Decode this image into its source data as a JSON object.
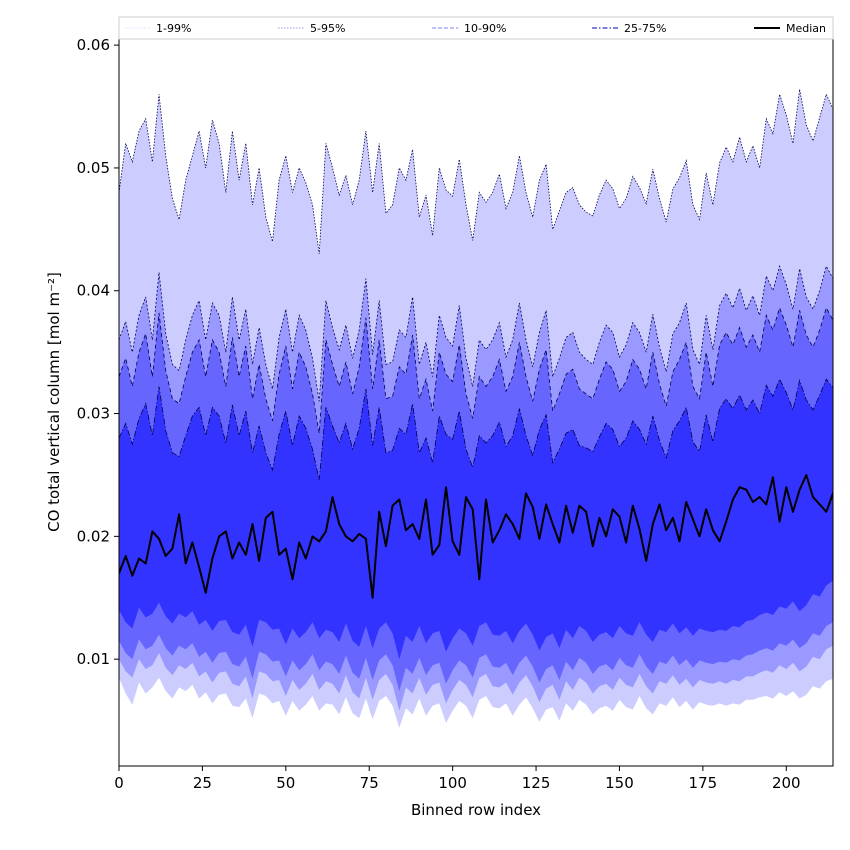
{
  "chart_data": {
    "type": "area",
    "title": "",
    "xlabel": "Binned row index",
    "ylabel": "CO total vertical column [mol m⁻²]",
    "xlim": [
      0,
      214
    ],
    "ylim": [
      0.0013,
      0.0605
    ],
    "x_ticks": [
      0,
      25,
      50,
      75,
      100,
      125,
      150,
      175,
      200
    ],
    "x_tick_labels": [
      "0",
      "25",
      "50",
      "75",
      "100",
      "125",
      "150",
      "175",
      "200"
    ],
    "y_ticks": [
      0.01,
      0.02,
      0.03,
      0.04,
      0.05,
      0.06
    ],
    "y_tick_labels": [
      "0.01",
      "0.02",
      "0.03",
      "0.04",
      "0.05",
      "0.06"
    ],
    "grid": false,
    "legend_position": "top",
    "legend": [
      {
        "label": "1-99%",
        "color": "#ccccff",
        "style": "dotted"
      },
      {
        "label": "5-95%",
        "color": "#7b7bd9",
        "style": "dotted"
      },
      {
        "label": "10-90%",
        "color": "#8080ff",
        "style": "dashed"
      },
      {
        "label": "25-75%",
        "color": "#3333cc",
        "style": "dashdot"
      },
      {
        "label": "Median",
        "color": "#000000",
        "style": "solid"
      }
    ],
    "x_step": 2,
    "bands": [
      {
        "name": "1-99%",
        "color": "#ccccff",
        "edge": "#00004d",
        "dash": "1.5 1.5",
        "lower": [
          0.0085,
          0.0072,
          0.0063,
          0.0081,
          0.0072,
          0.0077,
          0.0085,
          0.0074,
          0.0068,
          0.0077,
          0.0074,
          0.0079,
          0.0068,
          0.0073,
          0.0064,
          0.0071,
          0.0072,
          0.0062,
          0.0061,
          0.0068,
          0.0052,
          0.0072,
          0.007,
          0.0064,
          0.0066,
          0.0054,
          0.0066,
          0.0058,
          0.0063,
          0.007,
          0.0058,
          0.0064,
          0.0063,
          0.0055,
          0.0069,
          0.0056,
          0.0052,
          0.0068,
          0.0051,
          0.0066,
          0.007,
          0.0062,
          0.0044,
          0.006,
          0.0055,
          0.0068,
          0.0054,
          0.0062,
          0.0064,
          0.0048,
          0.0058,
          0.0066,
          0.0062,
          0.0052,
          0.0067,
          0.007,
          0.0061,
          0.006,
          0.0064,
          0.0054,
          0.0063,
          0.0069,
          0.006,
          0.0049,
          0.0059,
          0.0061,
          0.005,
          0.0064,
          0.0058,
          0.0067,
          0.0063,
          0.0055,
          0.006,
          0.0062,
          0.0058,
          0.0067,
          0.0061,
          0.0059,
          0.007,
          0.006,
          0.0055,
          0.0064,
          0.0062,
          0.0069,
          0.0061,
          0.0066,
          0.0059,
          0.0065,
          0.0063,
          0.0062,
          0.0064,
          0.0062,
          0.0064,
          0.0063,
          0.0067,
          0.0067,
          0.0069,
          0.007,
          0.0068,
          0.0073,
          0.007,
          0.0074,
          0.0068,
          0.0071,
          0.0078,
          0.0076,
          0.0082,
          0.0084,
          0.0075
        ],
        "upper": [
          0.048,
          0.052,
          0.0505,
          0.053,
          0.054,
          0.0505,
          0.056,
          0.051,
          0.0475,
          0.0458,
          0.049,
          0.051,
          0.053,
          0.05,
          0.0539,
          0.052,
          0.048,
          0.053,
          0.049,
          0.052,
          0.047,
          0.05,
          0.046,
          0.044,
          0.049,
          0.051,
          0.048,
          0.05,
          0.0488,
          0.047,
          0.043,
          0.052,
          0.05,
          0.0478,
          0.0494,
          0.047,
          0.049,
          0.053,
          0.048,
          0.052,
          0.0463,
          0.047,
          0.05,
          0.049,
          0.0515,
          0.046,
          0.0478,
          0.0445,
          0.05,
          0.0482,
          0.0477,
          0.0507,
          0.047,
          0.0441,
          0.048,
          0.0472,
          0.048,
          0.0495,
          0.0467,
          0.048,
          0.051,
          0.048,
          0.046,
          0.049,
          0.0503,
          0.045,
          0.0465,
          0.048,
          0.0484,
          0.047,
          0.0464,
          0.0461,
          0.0478,
          0.049,
          0.0483,
          0.0467,
          0.0475,
          0.0493,
          0.0484,
          0.0471,
          0.0499,
          0.0475,
          0.0456,
          0.0483,
          0.0492,
          0.0506,
          0.047,
          0.0458,
          0.0496,
          0.047,
          0.0504,
          0.0517,
          0.0505,
          0.0525,
          0.0505,
          0.0518,
          0.05,
          0.054,
          0.0528,
          0.056,
          0.0543,
          0.052,
          0.0564,
          0.0535,
          0.0522,
          0.0541,
          0.056,
          0.0548,
          0.0548
        ]
      },
      {
        "name": "5-95%",
        "color": "#9999ff",
        "edge": "#00004d",
        "dash": "2 2",
        "lower": [
          0.01,
          0.009,
          0.0085,
          0.01,
          0.0092,
          0.0095,
          0.0105,
          0.0093,
          0.0087,
          0.0095,
          0.0092,
          0.0097,
          0.0086,
          0.009,
          0.0081,
          0.0089,
          0.009,
          0.008,
          0.0078,
          0.0086,
          0.0068,
          0.009,
          0.0088,
          0.0082,
          0.0083,
          0.007,
          0.0083,
          0.0075,
          0.008,
          0.0088,
          0.0075,
          0.0082,
          0.008,
          0.0072,
          0.0087,
          0.0073,
          0.0068,
          0.0085,
          0.0067,
          0.0083,
          0.0088,
          0.0079,
          0.0058,
          0.0077,
          0.0072,
          0.0085,
          0.0071,
          0.0079,
          0.0081,
          0.0064,
          0.0075,
          0.0083,
          0.0079,
          0.0069,
          0.0085,
          0.0088,
          0.0078,
          0.0077,
          0.0081,
          0.0071,
          0.0081,
          0.0087,
          0.0078,
          0.0065,
          0.0076,
          0.0079,
          0.0067,
          0.0082,
          0.0075,
          0.0085,
          0.0081,
          0.0072,
          0.0078,
          0.008,
          0.0075,
          0.0085,
          0.0079,
          0.0077,
          0.0088,
          0.0078,
          0.0072,
          0.0082,
          0.008,
          0.0087,
          0.0079,
          0.0084,
          0.0077,
          0.0083,
          0.0081,
          0.008,
          0.0082,
          0.008,
          0.0083,
          0.0082,
          0.0086,
          0.0086,
          0.0089,
          0.0091,
          0.0089,
          0.0095,
          0.0092,
          0.0097,
          0.009,
          0.0094,
          0.0102,
          0.01,
          0.0108,
          0.0111,
          0.01
        ],
        "upper": [
          0.036,
          0.0375,
          0.035,
          0.038,
          0.0395,
          0.036,
          0.0415,
          0.0365,
          0.034,
          0.0335,
          0.036,
          0.038,
          0.0392,
          0.036,
          0.039,
          0.038,
          0.035,
          0.0395,
          0.036,
          0.0385,
          0.034,
          0.037,
          0.034,
          0.032,
          0.0362,
          0.0385,
          0.035,
          0.038,
          0.0368,
          0.0345,
          0.031,
          0.0392,
          0.037,
          0.0352,
          0.0372,
          0.0345,
          0.0368,
          0.041,
          0.0348,
          0.0392,
          0.034,
          0.0342,
          0.0368,
          0.0362,
          0.0395,
          0.034,
          0.0358,
          0.033,
          0.038,
          0.0362,
          0.0355,
          0.0388,
          0.0345,
          0.0322,
          0.036,
          0.0352,
          0.036,
          0.0374,
          0.0346,
          0.036,
          0.039,
          0.036,
          0.0338,
          0.0366,
          0.0384,
          0.033,
          0.0345,
          0.0362,
          0.0366,
          0.035,
          0.0344,
          0.034,
          0.0358,
          0.0372,
          0.0366,
          0.0346,
          0.0356,
          0.0374,
          0.0366,
          0.035,
          0.0381,
          0.0354,
          0.0334,
          0.0365,
          0.0374,
          0.039,
          0.0352,
          0.034,
          0.038,
          0.0352,
          0.0388,
          0.0398,
          0.0386,
          0.0402,
          0.0384,
          0.0396,
          0.038,
          0.0412,
          0.04,
          0.042,
          0.0405,
          0.0385,
          0.0418,
          0.0395,
          0.0385,
          0.04,
          0.042,
          0.041,
          0.0408
        ]
      },
      {
        "name": "10-90%",
        "color": "#6666ff",
        "edge": "#00004d",
        "dash": "4 3",
        "lower": [
          0.0115,
          0.0105,
          0.01,
          0.0116,
          0.0108,
          0.0111,
          0.012,
          0.0109,
          0.0103,
          0.0111,
          0.0108,
          0.0113,
          0.0102,
          0.0106,
          0.0097,
          0.0105,
          0.0106,
          0.0096,
          0.0094,
          0.0102,
          0.0084,
          0.0106,
          0.0104,
          0.0098,
          0.0099,
          0.0086,
          0.0099,
          0.0091,
          0.0096,
          0.0104,
          0.0091,
          0.0098,
          0.0096,
          0.0088,
          0.0103,
          0.0089,
          0.0084,
          0.0101,
          0.0083,
          0.0099,
          0.0104,
          0.0095,
          0.0074,
          0.0093,
          0.0088,
          0.0101,
          0.0087,
          0.0095,
          0.0097,
          0.008,
          0.0091,
          0.0099,
          0.0095,
          0.0085,
          0.0101,
          0.0104,
          0.0094,
          0.0093,
          0.0097,
          0.0087,
          0.0097,
          0.0103,
          0.0094,
          0.0081,
          0.0092,
          0.0095,
          0.0083,
          0.0098,
          0.0091,
          0.0101,
          0.0097,
          0.0088,
          0.0094,
          0.0096,
          0.0091,
          0.0101,
          0.0095,
          0.0093,
          0.0104,
          0.0094,
          0.0088,
          0.0098,
          0.0096,
          0.0103,
          0.0095,
          0.01,
          0.0093,
          0.0099,
          0.0097,
          0.0096,
          0.0098,
          0.0097,
          0.01,
          0.0099,
          0.0103,
          0.0104,
          0.0107,
          0.0109,
          0.0107,
          0.0113,
          0.0111,
          0.0116,
          0.0109,
          0.0113,
          0.0121,
          0.0119,
          0.0127,
          0.013,
          0.012
        ],
        "upper": [
          0.033,
          0.0345,
          0.0322,
          0.035,
          0.0365,
          0.033,
          0.0382,
          0.0335,
          0.0312,
          0.0308,
          0.033,
          0.035,
          0.036,
          0.033,
          0.036,
          0.035,
          0.0322,
          0.0362,
          0.033,
          0.0355,
          0.0312,
          0.034,
          0.0312,
          0.0294,
          0.0332,
          0.0355,
          0.032,
          0.035,
          0.0338,
          0.0316,
          0.0284,
          0.036,
          0.034,
          0.0322,
          0.0342,
          0.0316,
          0.0338,
          0.0378,
          0.032,
          0.036,
          0.0312,
          0.0314,
          0.0338,
          0.0332,
          0.0364,
          0.0312,
          0.0328,
          0.0302,
          0.035,
          0.0332,
          0.0326,
          0.0356,
          0.0316,
          0.0296,
          0.033,
          0.0322,
          0.033,
          0.0344,
          0.0318,
          0.033,
          0.0358,
          0.033,
          0.031,
          0.0336,
          0.0352,
          0.0302,
          0.0316,
          0.0332,
          0.0336,
          0.032,
          0.0316,
          0.0312,
          0.0328,
          0.0342,
          0.0336,
          0.0318,
          0.0326,
          0.0344,
          0.0336,
          0.032,
          0.035,
          0.0324,
          0.0306,
          0.0334,
          0.0344,
          0.0358,
          0.0322,
          0.0312,
          0.035,
          0.0322,
          0.0356,
          0.0366,
          0.0356,
          0.037,
          0.0354,
          0.0364,
          0.035,
          0.038,
          0.0368,
          0.0386,
          0.0372,
          0.0354,
          0.0384,
          0.0364,
          0.0354,
          0.0368,
          0.0386,
          0.0376,
          0.0374
        ]
      },
      {
        "name": "25-75%",
        "color": "#3333ff",
        "edge": "#00004d",
        "dash": "6 2 1.5 2",
        "lower": [
          0.014,
          0.013,
          0.0125,
          0.0142,
          0.0134,
          0.0137,
          0.0146,
          0.0135,
          0.0129,
          0.0137,
          0.0134,
          0.0139,
          0.0128,
          0.0132,
          0.0123,
          0.0131,
          0.0132,
          0.0122,
          0.012,
          0.0128,
          0.011,
          0.0132,
          0.013,
          0.0124,
          0.0125,
          0.0112,
          0.0125,
          0.0117,
          0.0122,
          0.013,
          0.0117,
          0.0124,
          0.0122,
          0.0114,
          0.0129,
          0.0115,
          0.011,
          0.0127,
          0.0109,
          0.0125,
          0.013,
          0.0121,
          0.01,
          0.0119,
          0.0114,
          0.0127,
          0.0113,
          0.0121,
          0.0123,
          0.0106,
          0.0117,
          0.0125,
          0.0121,
          0.0111,
          0.0127,
          0.013,
          0.012,
          0.0119,
          0.0123,
          0.0113,
          0.0123,
          0.0129,
          0.012,
          0.0107,
          0.0118,
          0.0121,
          0.0109,
          0.0124,
          0.0117,
          0.0127,
          0.0123,
          0.0114,
          0.012,
          0.0122,
          0.0117,
          0.0127,
          0.0121,
          0.0119,
          0.013,
          0.012,
          0.0114,
          0.0124,
          0.0122,
          0.0129,
          0.0121,
          0.0126,
          0.0119,
          0.0125,
          0.0123,
          0.0122,
          0.0124,
          0.0123,
          0.0127,
          0.0126,
          0.0131,
          0.0132,
          0.0136,
          0.0138,
          0.0136,
          0.0143,
          0.0141,
          0.0147,
          0.0139,
          0.0144,
          0.0153,
          0.0151,
          0.016,
          0.0164,
          0.0152
        ],
        "upper": [
          0.028,
          0.0292,
          0.0275,
          0.0296,
          0.0308,
          0.0282,
          0.0322,
          0.0286,
          0.0268,
          0.0265,
          0.0282,
          0.0298,
          0.0305,
          0.0282,
          0.0305,
          0.0298,
          0.0276,
          0.0307,
          0.0282,
          0.0302,
          0.0268,
          0.029,
          0.0268,
          0.0254,
          0.0283,
          0.0302,
          0.0274,
          0.0298,
          0.0288,
          0.0271,
          0.0246,
          0.0305,
          0.029,
          0.0276,
          0.0292,
          0.0271,
          0.0288,
          0.032,
          0.0274,
          0.0305,
          0.0268,
          0.027,
          0.0288,
          0.0283,
          0.0308,
          0.0268,
          0.028,
          0.026,
          0.0298,
          0.0283,
          0.0279,
          0.0302,
          0.0271,
          0.0256,
          0.0282,
          0.0276,
          0.0282,
          0.0293,
          0.0273,
          0.0282,
          0.0304,
          0.0282,
          0.0266,
          0.0287,
          0.0299,
          0.026,
          0.0271,
          0.0284,
          0.0287,
          0.0274,
          0.0272,
          0.0269,
          0.0281,
          0.0292,
          0.0287,
          0.0273,
          0.028,
          0.0294,
          0.0287,
          0.0275,
          0.0298,
          0.0278,
          0.0264,
          0.0286,
          0.0294,
          0.0305,
          0.0277,
          0.0269,
          0.0299,
          0.0277,
          0.0304,
          0.0312,
          0.0304,
          0.0315,
          0.0303,
          0.0311,
          0.03,
          0.0323,
          0.0314,
          0.0328,
          0.0317,
          0.0303,
          0.0327,
          0.0311,
          0.0303,
          0.0315,
          0.0328,
          0.0321,
          0.032
        ]
      }
    ],
    "series": [
      {
        "name": "Median",
        "color": "#000000",
        "values": [
          0.017,
          0.0184,
          0.0168,
          0.0182,
          0.0178,
          0.0204,
          0.0198,
          0.0184,
          0.019,
          0.0218,
          0.0178,
          0.0195,
          0.0175,
          0.0154,
          0.0182,
          0.02,
          0.0204,
          0.0182,
          0.0195,
          0.0185,
          0.021,
          0.018,
          0.0215,
          0.022,
          0.0185,
          0.019,
          0.0165,
          0.0195,
          0.0182,
          0.02,
          0.0196,
          0.0204,
          0.0232,
          0.021,
          0.02,
          0.0196,
          0.0202,
          0.0198,
          0.015,
          0.022,
          0.0192,
          0.0225,
          0.023,
          0.0205,
          0.021,
          0.0198,
          0.023,
          0.0185,
          0.0193,
          0.024,
          0.0196,
          0.0185,
          0.0232,
          0.0222,
          0.0165,
          0.023,
          0.0195,
          0.0205,
          0.0218,
          0.021,
          0.0198,
          0.0235,
          0.0224,
          0.0198,
          0.0226,
          0.021,
          0.0195,
          0.0225,
          0.0203,
          0.0225,
          0.022,
          0.0192,
          0.0215,
          0.02,
          0.0222,
          0.0216,
          0.0195,
          0.0225,
          0.0206,
          0.018,
          0.021,
          0.0226,
          0.0205,
          0.0215,
          0.0196,
          0.0228,
          0.0214,
          0.02,
          0.0222,
          0.0205,
          0.0196,
          0.0212,
          0.023,
          0.024,
          0.0238,
          0.0228,
          0.0232,
          0.0226,
          0.0248,
          0.0212,
          0.024,
          0.022,
          0.0238,
          0.025,
          0.0232,
          0.0226,
          0.022,
          0.0235,
          0.0248
        ]
      }
    ]
  }
}
